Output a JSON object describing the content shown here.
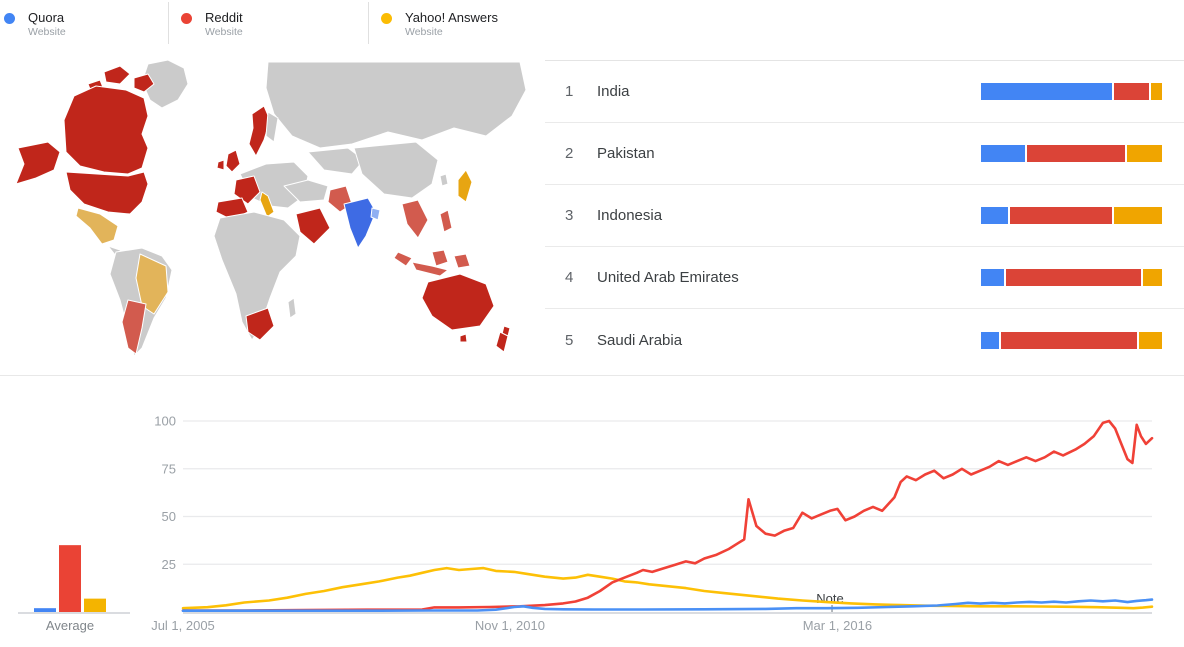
{
  "legend": {
    "items": [
      {
        "label": "Quora",
        "sublabel": "Website",
        "color": "#4285F4"
      },
      {
        "label": "Reddit",
        "sublabel": "Website",
        "color": "#EA4335"
      },
      {
        "label": "Yahoo! Answers",
        "sublabel": "Website",
        "color": "#FBBC04"
      }
    ]
  },
  "ranking": {
    "site_colors": {
      "quora": "#4285F4",
      "reddit": "#DB4437",
      "yahoo": "#F0A500"
    },
    "rows": [
      {
        "rank": "1",
        "region": "India",
        "segments": [
          {
            "site": "quora",
            "pct": 74
          },
          {
            "site": "reddit",
            "pct": 20
          },
          {
            "site": "yahoo",
            "pct": 6
          }
        ]
      },
      {
        "rank": "2",
        "region": "Pakistan",
        "segments": [
          {
            "site": "quora",
            "pct": 25
          },
          {
            "site": "reddit",
            "pct": 55
          },
          {
            "site": "yahoo",
            "pct": 20
          }
        ]
      },
      {
        "rank": "3",
        "region": "Indonesia",
        "segments": [
          {
            "site": "quora",
            "pct": 15
          },
          {
            "site": "reddit",
            "pct": 58
          },
          {
            "site": "yahoo",
            "pct": 27
          }
        ]
      },
      {
        "rank": "4",
        "region": "United Arab Emirates",
        "segments": [
          {
            "site": "quora",
            "pct": 13
          },
          {
            "site": "reddit",
            "pct": 76
          },
          {
            "site": "yahoo",
            "pct": 11
          }
        ]
      },
      {
        "rank": "5",
        "region": "Saudi Arabia",
        "segments": [
          {
            "site": "quora",
            "pct": 10
          },
          {
            "site": "reddit",
            "pct": 77
          },
          {
            "site": "yahoo",
            "pct": 13
          }
        ]
      }
    ]
  },
  "map": {
    "region_fills": {
      "greenland": "#CBCBCB",
      "arctic-island-1": "#C0261B",
      "arctic-island-2": "#C0261B",
      "arctic-island-3": "#C0261B",
      "canada": "#C0261B",
      "alaska": "#C0261B",
      "usa": "#C0261B",
      "mexico": "#E2B45A",
      "central-america": "#CBCBCB",
      "south-america": "#CBCBCB",
      "brazil": "#E2B45A",
      "argentina": "#D25B4E",
      "uk": "#C0261B",
      "ireland": "#C0261B",
      "scandinavia": "#C0261B",
      "finland": "#CBCBCB",
      "europe-central": "#CBCBCB",
      "france": "#C0261B",
      "spain": "#C0261B",
      "italy": "#E7A512",
      "russia": "#CBCBCB",
      "central-asia": "#CBCBCB",
      "turkey-iran": "#CBCBCB",
      "saudi-arabia": "#C0261B",
      "africa": "#CBCBCB",
      "south-africa": "#C0261B",
      "madagascar": "#CBCBCB",
      "pakistan": "#D25B4E",
      "india": "#3E6BE4",
      "bangladesh": "#8FAFF2",
      "china": "#CBCBCB",
      "korea": "#CBCBCB",
      "japan": "#E7A512",
      "indochina": "#D25B4E",
      "malaysia": "#D25B4E",
      "indonesia-west": "#D25B4E",
      "borneo": "#D25B4E",
      "sulawesi": "#D25B4E",
      "philippines": "#D25B4E",
      "australia": "#C0261B",
      "tasmania": "#C0261B",
      "new-zealand-north": "#C0261B",
      "new-zealand-south": "#C0261B"
    }
  },
  "chart_data": [
    {
      "type": "line",
      "title": "",
      "xlabel": "",
      "ylabel": "",
      "x_domain": [
        2005.5,
        2021.3
      ],
      "ylim": [
        0,
        100
      ],
      "yticks": [
        25,
        50,
        75,
        100
      ],
      "grid": true,
      "xticks": [
        {
          "year": 2005.5,
          "label": "Jul 1, 2005"
        },
        {
          "year": 2010.83,
          "label": "Nov 1, 2010"
        },
        {
          "year": 2016.17,
          "label": "Mar 1, 2016"
        }
      ],
      "note": {
        "year": 2016.05,
        "label": "Note"
      },
      "series": [
        {
          "name": "Yahoo! Answers",
          "color": "#FDC006",
          "points": [
            [
              2005.5,
              2
            ],
            [
              2005.9,
              2.5
            ],
            [
              2006.2,
              3.5
            ],
            [
              2006.5,
              5
            ],
            [
              2006.9,
              6
            ],
            [
              2007.2,
              7.5
            ],
            [
              2007.5,
              9.5
            ],
            [
              2007.8,
              11
            ],
            [
              2008.1,
              13
            ],
            [
              2008.4,
              14.5
            ],
            [
              2008.7,
              16
            ],
            [
              2009.0,
              18
            ],
            [
              2009.2,
              19
            ],
            [
              2009.4,
              20.5
            ],
            [
              2009.6,
              22
            ],
            [
              2009.8,
              23
            ],
            [
              2010.0,
              22
            ],
            [
              2010.2,
              22.5
            ],
            [
              2010.4,
              23
            ],
            [
              2010.6,
              21.5
            ],
            [
              2010.9,
              21
            ],
            [
              2011.1,
              20
            ],
            [
              2011.4,
              18.5
            ],
            [
              2011.7,
              17.5
            ],
            [
              2011.9,
              18
            ],
            [
              2012.1,
              19.5
            ],
            [
              2012.3,
              18.5
            ],
            [
              2012.5,
              17.5
            ],
            [
              2012.7,
              16
            ],
            [
              2012.9,
              15.5
            ],
            [
              2013.1,
              14.5
            ],
            [
              2013.4,
              13.5
            ],
            [
              2013.7,
              12.5
            ],
            [
              2014.0,
              11
            ],
            [
              2014.3,
              10
            ],
            [
              2014.6,
              9
            ],
            [
              2014.9,
              8
            ],
            [
              2015.2,
              7
            ],
            [
              2015.6,
              6
            ],
            [
              2016.0,
              5.2
            ],
            [
              2016.4,
              4.5
            ],
            [
              2016.8,
              4
            ],
            [
              2017.2,
              3.6
            ],
            [
              2017.6,
              3.3
            ],
            [
              2018.0,
              3.2
            ],
            [
              2018.5,
              3
            ],
            [
              2019.0,
              3
            ],
            [
              2019.5,
              2.9
            ],
            [
              2020.0,
              2.7
            ],
            [
              2020.4,
              2.5
            ],
            [
              2020.8,
              2.2
            ],
            [
              2021.0,
              2
            ],
            [
              2021.15,
              2.3
            ],
            [
              2021.3,
              2.8
            ]
          ]
        },
        {
          "name": "Reddit",
          "color": "#F04137",
          "points": [
            [
              2005.5,
              0.8
            ],
            [
              2006.5,
              0.8
            ],
            [
              2007.5,
              1
            ],
            [
              2008.5,
              1.2
            ],
            [
              2009.4,
              1.3
            ],
            [
              2009.6,
              2.4
            ],
            [
              2010.0,
              2.4
            ],
            [
              2010.5,
              2.6
            ],
            [
              2011.0,
              3
            ],
            [
              2011.4,
              3.6
            ],
            [
              2011.7,
              4.5
            ],
            [
              2011.9,
              5.5
            ],
            [
              2012.1,
              7.5
            ],
            [
              2012.3,
              11
            ],
            [
              2012.5,
              15.5
            ],
            [
              2012.7,
              18
            ],
            [
              2012.9,
              20.5
            ],
            [
              2013.0,
              22
            ],
            [
              2013.15,
              21
            ],
            [
              2013.3,
              22.5
            ],
            [
              2013.5,
              24.5
            ],
            [
              2013.7,
              26.5
            ],
            [
              2013.85,
              25.5
            ],
            [
              2014.0,
              28
            ],
            [
              2014.2,
              30
            ],
            [
              2014.4,
              33
            ],
            [
              2014.55,
              36
            ],
            [
              2014.65,
              38
            ],
            [
              2014.72,
              59
            ],
            [
              2014.85,
              45
            ],
            [
              2015.0,
              41
            ],
            [
              2015.15,
              40
            ],
            [
              2015.3,
              42.5
            ],
            [
              2015.45,
              44
            ],
            [
              2015.6,
              52
            ],
            [
              2015.75,
              49
            ],
            [
              2015.9,
              51
            ],
            [
              2016.05,
              53
            ],
            [
              2016.17,
              54
            ],
            [
              2016.3,
              48
            ],
            [
              2016.45,
              50
            ],
            [
              2016.6,
              53
            ],
            [
              2016.75,
              55
            ],
            [
              2016.9,
              53
            ],
            [
              2017.1,
              60
            ],
            [
              2017.2,
              68
            ],
            [
              2017.3,
              71
            ],
            [
              2017.45,
              69
            ],
            [
              2017.6,
              72
            ],
            [
              2017.75,
              74
            ],
            [
              2017.9,
              70
            ],
            [
              2018.05,
              72
            ],
            [
              2018.2,
              75
            ],
            [
              2018.35,
              72
            ],
            [
              2018.5,
              74
            ],
            [
              2018.65,
              76
            ],
            [
              2018.8,
              79
            ],
            [
              2018.95,
              77
            ],
            [
              2019.1,
              79
            ],
            [
              2019.25,
              81
            ],
            [
              2019.4,
              79
            ],
            [
              2019.55,
              81
            ],
            [
              2019.7,
              84
            ],
            [
              2019.85,
              82
            ],
            [
              2020.05,
              85
            ],
            [
              2020.2,
              88
            ],
            [
              2020.35,
              92
            ],
            [
              2020.5,
              99
            ],
            [
              2020.6,
              100
            ],
            [
              2020.7,
              96
            ],
            [
              2020.8,
              88
            ],
            [
              2020.9,
              80
            ],
            [
              2020.98,
              78
            ],
            [
              2021.05,
              98
            ],
            [
              2021.12,
              92
            ],
            [
              2021.2,
              88
            ],
            [
              2021.3,
              91
            ]
          ]
        },
        {
          "name": "Quora",
          "color": "#4A90F5",
          "points": [
            [
              2005.5,
              0.7
            ],
            [
              2007.0,
              0.7
            ],
            [
              2008.5,
              0.7
            ],
            [
              2009.5,
              0.8
            ],
            [
              2010.3,
              0.8
            ],
            [
              2010.6,
              1.2
            ],
            [
              2010.9,
              2.6
            ],
            [
              2011.05,
              3
            ],
            [
              2011.2,
              2.2
            ],
            [
              2011.4,
              1.6
            ],
            [
              2011.7,
              1.4
            ],
            [
              2012.2,
              1.3
            ],
            [
              2013.0,
              1.3
            ],
            [
              2014.0,
              1.4
            ],
            [
              2015.0,
              1.6
            ],
            [
              2015.5,
              2
            ],
            [
              2016.0,
              2
            ],
            [
              2016.5,
              2.2
            ],
            [
              2017.0,
              2.6
            ],
            [
              2017.4,
              3
            ],
            [
              2017.8,
              3.4
            ],
            [
              2018.1,
              4.2
            ],
            [
              2018.3,
              4.8
            ],
            [
              2018.5,
              4.4
            ],
            [
              2018.7,
              4.8
            ],
            [
              2018.9,
              4.5
            ],
            [
              2019.1,
              5
            ],
            [
              2019.3,
              5.3
            ],
            [
              2019.5,
              5
            ],
            [
              2019.7,
              5.4
            ],
            [
              2019.9,
              5
            ],
            [
              2020.1,
              5.6
            ],
            [
              2020.3,
              6
            ],
            [
              2020.5,
              5.6
            ],
            [
              2020.7,
              6
            ],
            [
              2020.9,
              5.2
            ],
            [
              2021.05,
              5.8
            ],
            [
              2021.2,
              6.2
            ],
            [
              2021.3,
              6.5
            ]
          ]
        }
      ]
    },
    {
      "type": "bar",
      "title": "Average",
      "categories": [
        "Quora",
        "Reddit",
        "Yahoo! Answers"
      ],
      "values": [
        2,
        35,
        7
      ],
      "colors": [
        "#4285F4",
        "#EA4335",
        "#F4B400"
      ],
      "ylim": [
        0,
        100
      ]
    }
  ]
}
